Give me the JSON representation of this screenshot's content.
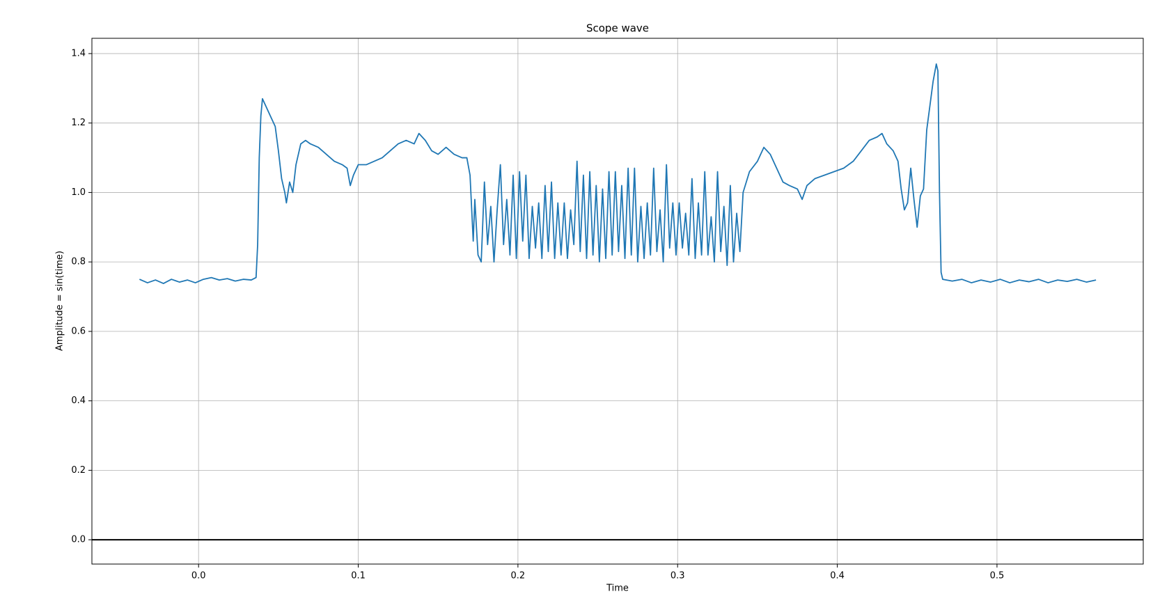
{
  "chart_data": {
    "type": "line",
    "title": "Scope wave",
    "x_label": "Time",
    "y_label": "Amplitude = sin(time)",
    "xlim": [
      -0.0668,
      0.5916
    ],
    "ylim": [
      -0.07,
      1.444
    ],
    "xticks": [
      {
        "value": 0,
        "label": "0.0"
      },
      0.1,
      0.2,
      0.3,
      0.4,
      0.5
    ],
    "yticks": [
      {
        "value": 0,
        "label": "0.0"
      },
      0.2,
      0.4,
      0.6,
      0.8,
      {
        "value": 1,
        "label": "1.0"
      },
      1.2,
      1.4
    ],
    "grid": true,
    "hline": 0,
    "series": [
      {
        "color": "#1f77b4",
        "x": [
          -0.037,
          -0.032,
          -0.027,
          -0.022,
          -0.017,
          -0.012,
          -0.007,
          -0.002,
          0.003,
          0.008,
          0.013,
          0.018,
          0.023,
          0.028,
          0.033,
          0.036,
          0.037,
          0.038,
          0.039,
          0.04,
          0.042,
          0.045,
          0.048,
          0.05,
          0.052,
          0.054,
          0.055,
          0.057,
          0.059,
          0.061,
          0.064,
          0.067,
          0.07,
          0.075,
          0.08,
          0.085,
          0.09,
          0.093,
          0.095,
          0.097,
          0.1,
          0.105,
          0.11,
          0.115,
          0.12,
          0.125,
          0.13,
          0.135,
          0.138,
          0.142,
          0.146,
          0.15,
          0.155,
          0.16,
          0.165,
          0.168,
          0.17,
          0.172,
          0.173,
          0.175,
          0.177,
          0.179,
          0.181,
          0.183,
          0.185,
          0.187,
          0.189,
          0.191,
          0.193,
          0.195,
          0.197,
          0.199,
          0.201,
          0.203,
          0.205,
          0.207,
          0.209,
          0.211,
          0.213,
          0.215,
          0.217,
          0.219,
          0.221,
          0.223,
          0.225,
          0.227,
          0.229,
          0.231,
          0.233,
          0.235,
          0.237,
          0.239,
          0.241,
          0.243,
          0.245,
          0.247,
          0.249,
          0.251,
          0.253,
          0.255,
          0.257,
          0.259,
          0.261,
          0.263,
          0.265,
          0.267,
          0.269,
          0.271,
          0.273,
          0.275,
          0.277,
          0.279,
          0.281,
          0.283,
          0.285,
          0.287,
          0.289,
          0.291,
          0.293,
          0.295,
          0.297,
          0.299,
          0.301,
          0.303,
          0.305,
          0.307,
          0.309,
          0.311,
          0.313,
          0.315,
          0.317,
          0.319,
          0.321,
          0.323,
          0.325,
          0.327,
          0.329,
          0.331,
          0.333,
          0.335,
          0.337,
          0.339,
          0.341,
          0.345,
          0.35,
          0.354,
          0.358,
          0.362,
          0.366,
          0.37,
          0.375,
          0.378,
          0.381,
          0.386,
          0.392,
          0.398,
          0.404,
          0.41,
          0.415,
          0.42,
          0.425,
          0.428,
          0.431,
          0.435,
          0.438,
          0.44,
          0.442,
          0.444,
          0.446,
          0.448,
          0.45,
          0.452,
          0.454,
          0.456,
          0.458,
          0.46,
          0.462,
          0.463,
          0.464,
          0.465,
          0.466,
          0.472,
          0.478,
          0.484,
          0.49,
          0.496,
          0.502,
          0.508,
          0.514,
          0.52,
          0.526,
          0.532,
          0.538,
          0.544,
          0.55,
          0.556,
          0.562
        ],
        "values": [
          0.75,
          0.74,
          0.748,
          0.738,
          0.75,
          0.742,
          0.748,
          0.74,
          0.75,
          0.755,
          0.748,
          0.752,
          0.745,
          0.75,
          0.748,
          0.755,
          0.85,
          1.1,
          1.22,
          1.27,
          1.25,
          1.22,
          1.19,
          1.12,
          1.04,
          1.0,
          0.97,
          1.03,
          1.0,
          1.08,
          1.14,
          1.15,
          1.14,
          1.13,
          1.11,
          1.09,
          1.08,
          1.07,
          1.02,
          1.05,
          1.08,
          1.08,
          1.09,
          1.1,
          1.12,
          1.14,
          1.15,
          1.14,
          1.17,
          1.15,
          1.12,
          1.11,
          1.13,
          1.11,
          1.1,
          1.1,
          1.05,
          0.86,
          0.98,
          0.82,
          0.8,
          1.03,
          0.85,
          0.96,
          0.8,
          0.95,
          1.08,
          0.85,
          0.98,
          0.82,
          1.05,
          0.81,
          1.06,
          0.86,
          1.05,
          0.81,
          0.96,
          0.84,
          0.97,
          0.81,
          1.02,
          0.83,
          1.03,
          0.81,
          0.97,
          0.82,
          0.97,
          0.81,
          0.95,
          0.85,
          1.09,
          0.83,
          1.05,
          0.81,
          1.06,
          0.82,
          1.02,
          0.8,
          1.01,
          0.81,
          1.06,
          0.82,
          1.06,
          0.83,
          1.02,
          0.81,
          1.07,
          0.82,
          1.07,
          0.8,
          0.96,
          0.81,
          0.97,
          0.82,
          1.07,
          0.83,
          0.95,
          0.8,
          1.08,
          0.84,
          0.97,
          0.82,
          0.97,
          0.84,
          0.94,
          0.82,
          1.04,
          0.81,
          0.97,
          0.82,
          1.06,
          0.82,
          0.93,
          0.8,
          1.06,
          0.83,
          0.96,
          0.79,
          1.02,
          0.8,
          0.94,
          0.83,
          1.0,
          1.06,
          1.09,
          1.13,
          1.11,
          1.07,
          1.03,
          1.02,
          1.01,
          0.98,
          1.02,
          1.04,
          1.05,
          1.06,
          1.07,
          1.09,
          1.12,
          1.15,
          1.16,
          1.17,
          1.14,
          1.12,
          1.09,
          1.01,
          0.95,
          0.97,
          1.07,
          0.98,
          0.9,
          0.99,
          1.01,
          1.18,
          1.25,
          1.32,
          1.37,
          1.35,
          1.0,
          0.77,
          0.75,
          0.745,
          0.75,
          0.74,
          0.748,
          0.742,
          0.75,
          0.74,
          0.748,
          0.743,
          0.75,
          0.74,
          0.748,
          0.744,
          0.75,
          0.742,
          0.748
        ]
      }
    ]
  }
}
